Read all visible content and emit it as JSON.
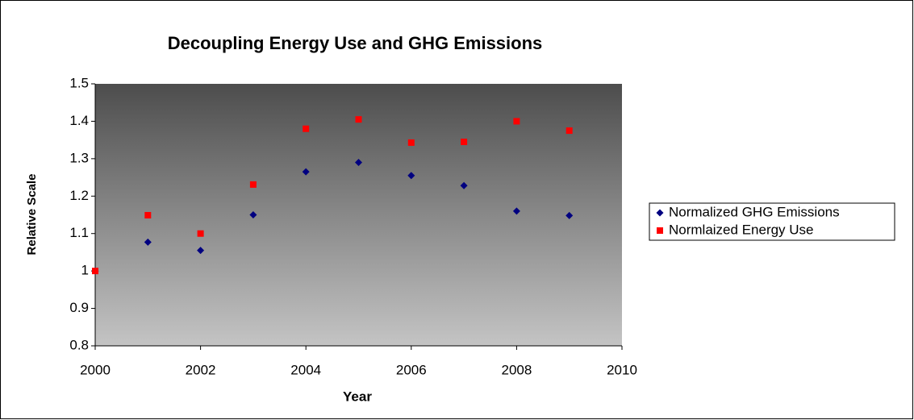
{
  "chart_data": {
    "type": "scatter",
    "title": "Decoupling Energy Use and GHG Emissions",
    "xlabel": "Year",
    "ylabel": "Relative Scale",
    "x": [
      2000,
      2001,
      2002,
      2003,
      2004,
      2005,
      2006,
      2007,
      2008,
      2009
    ],
    "series": [
      {
        "name": "Normalized GHG Emissions",
        "color": "#000080",
        "marker": "diamond",
        "values": [
          1.0,
          1.077,
          1.055,
          1.15,
          1.265,
          1.29,
          1.255,
          1.228,
          1.16,
          1.148
        ]
      },
      {
        "name": "Normlaized Energy Use",
        "color": "#ff0000",
        "marker": "square",
        "values": [
          1.0,
          1.149,
          1.1,
          1.231,
          1.38,
          1.405,
          1.343,
          1.345,
          1.4,
          1.375
        ]
      }
    ],
    "xlim": [
      2000,
      2010
    ],
    "xticks": [
      2000,
      2002,
      2004,
      2006,
      2008,
      2010
    ],
    "ylim": [
      0.8,
      1.5
    ],
    "yticks": [
      0.8,
      0.9,
      1,
      1.1,
      1.2,
      1.3,
      1.4,
      1.5
    ],
    "legend": "right"
  }
}
